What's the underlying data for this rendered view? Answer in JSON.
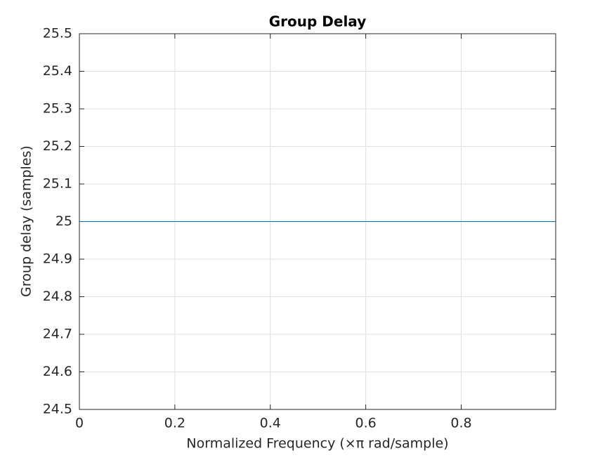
{
  "chart_data": {
    "type": "line",
    "title": "Group Delay",
    "xlabel": "Normalized Frequency  (×π rad/sample)",
    "ylabel": "Group delay (samples)",
    "x": [
      0,
      0.998
    ],
    "series": [
      {
        "name": "Group delay",
        "color": "#0072bd",
        "values": [
          25,
          25
        ]
      }
    ],
    "xlim": [
      0,
      0.998
    ],
    "ylim": [
      24.5,
      25.5
    ],
    "xticks": [
      0,
      0.2,
      0.4,
      0.6,
      0.8
    ],
    "yticks": [
      24.5,
      24.6,
      24.7,
      24.8,
      24.9,
      25,
      25.1,
      25.2,
      25.3,
      25.4,
      25.5
    ],
    "grid": true
  }
}
